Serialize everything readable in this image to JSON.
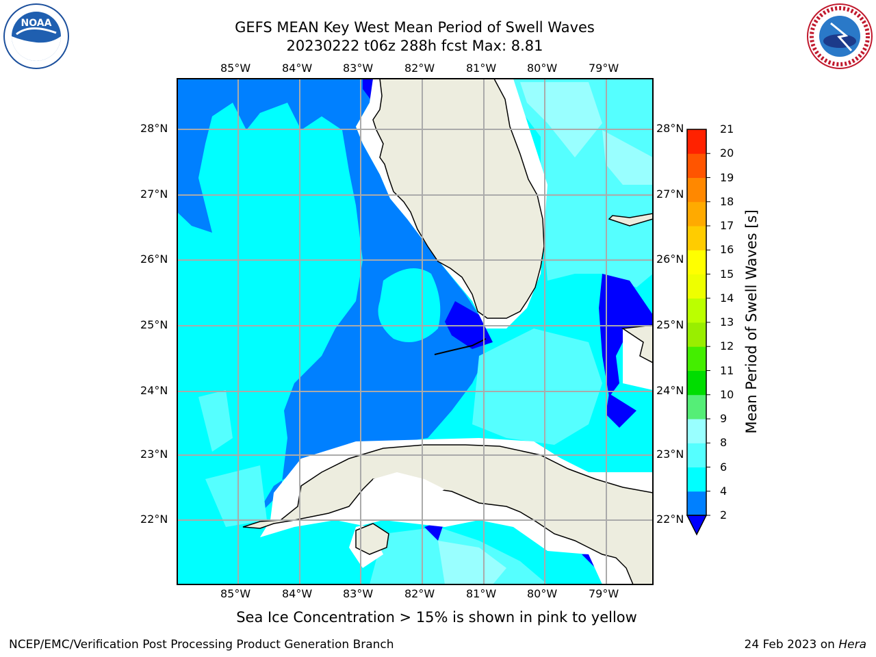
{
  "title_line1": "GEFS MEAN Key West Mean Period of Swell Waves",
  "title_line2": "20230222 t06z 288h fcst   Max: 8.81",
  "caption": "Sea Ice Concentration > 15% is shown in pink to yellow",
  "footer_left": "NCEP/EMC/Verification Post Processing Product Generation Branch",
  "footer_right_date": "24 Feb 2023 on",
  "footer_right_host": "Hera",
  "longitude_labels": [
    "85°W",
    "84°W",
    "83°W",
    "82°W",
    "81°W",
    "80°W",
    "79°W"
  ],
  "latitude_labels": [
    "28°N",
    "27°N",
    "26°N",
    "25°N",
    "24°N",
    "23°N",
    "22°N"
  ],
  "colorbar": {
    "title": "Mean Period of Swell Waves [s]",
    "ticks": [
      "2",
      "4",
      "6",
      "8",
      "9",
      "10",
      "11",
      "12",
      "13",
      "14",
      "15",
      "16",
      "17",
      "18",
      "19",
      "20",
      "21"
    ],
    "colors": [
      "#0000ff",
      "#0080ff",
      "#00ffff",
      "#55ffff",
      "#99ffff",
      "#55ee77",
      "#00dd00",
      "#44ee00",
      "#99ee00",
      "#bbff00",
      "#eeff00",
      "#ffff00",
      "#ffcc00",
      "#ffaa00",
      "#ff8800",
      "#ff5500",
      "#ff2200",
      "#ff0000"
    ],
    "extend": "min"
  },
  "logos": {
    "left": "NOAA",
    "right": "NATIONAL WEATHER SERVICE"
  },
  "colors": {
    "land": "#ededdf",
    "grid": "#aaaaaa",
    "coast": "#000000"
  }
}
